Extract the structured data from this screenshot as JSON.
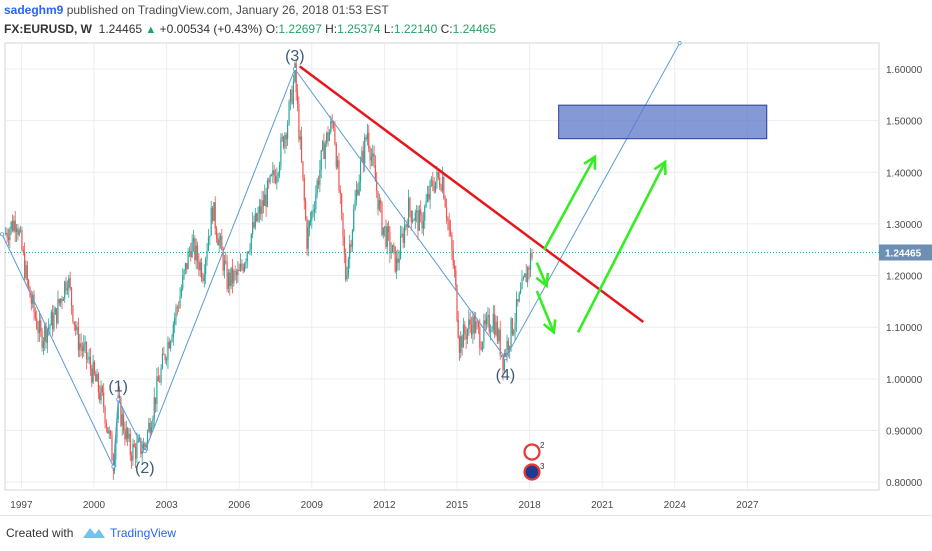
{
  "header": {
    "user": "sadeghm9",
    "published": " published on TradingView.com, January 26, 2018 01:53 EST",
    "symbol": "FX:EURUSD, W",
    "last": "1.24465",
    "change": "+0.00534 (+0.43%)",
    "o_label": "O:",
    "o_value": "1.22697",
    "h_label": "H:",
    "h_value": "1.25374",
    "l_label": "L:",
    "l_value": "1.22140",
    "c_label": "C:",
    "c_value": "1.24465"
  },
  "footer": {
    "created_with": "Created with",
    "brand": "TradingView"
  },
  "colors": {
    "up_candle": "#26a69a",
    "down_candle": "#ef5350",
    "wave_line": "#5b9bd5",
    "trend_line": "#e8161b",
    "arrows": "#33ee22",
    "zone_fill": "#5c77c9",
    "price_badge": "#6d8fb3",
    "grid": "#e9edf2"
  },
  "chart_data": {
    "type": "candlestick",
    "x_ticks": [
      1997,
      2000,
      2003,
      2006,
      2009,
      2012,
      2015,
      2018,
      2021,
      2024,
      2027
    ],
    "y_ticks": [
      "1.60000",
      "1.50000",
      "1.40000",
      "1.30000",
      "1.20000",
      "1.10000",
      "1.00000",
      "0.90000",
      "0.80000"
    ],
    "ylim": [
      0.78,
      1.67
    ],
    "current_price": 1.24465,
    "current_price_label": "1.24465",
    "price_path": [
      [
        1996.3,
        1.28
      ],
      [
        1996.8,
        1.31
      ],
      [
        1997.3,
        1.17
      ],
      [
        1997.8,
        1.08
      ],
      [
        1998.4,
        1.12
      ],
      [
        1998.9,
        1.2
      ],
      [
        1999.3,
        1.08
      ],
      [
        1999.8,
        1.03
      ],
      [
        2000.4,
        0.95
      ],
      [
        2000.8,
        0.84
      ],
      [
        2001.0,
        0.95
      ],
      [
        2001.5,
        0.86
      ],
      [
        2002.1,
        0.87
      ],
      [
        2002.6,
        0.98
      ],
      [
        2003.0,
        1.06
      ],
      [
        2003.5,
        1.15
      ],
      [
        2004.0,
        1.26
      ],
      [
        2004.5,
        1.21
      ],
      [
        2004.9,
        1.33
      ],
      [
        2005.5,
        1.19
      ],
      [
        2006.0,
        1.2
      ],
      [
        2006.5,
        1.28
      ],
      [
        2007.0,
        1.34
      ],
      [
        2007.5,
        1.4
      ],
      [
        2008.0,
        1.5
      ],
      [
        2008.3,
        1.59
      ],
      [
        2008.8,
        1.27
      ],
      [
        2009.0,
        1.32
      ],
      [
        2009.5,
        1.45
      ],
      [
        2009.9,
        1.5
      ],
      [
        2010.4,
        1.2
      ],
      [
        2010.9,
        1.38
      ],
      [
        2011.3,
        1.48
      ],
      [
        2011.9,
        1.3
      ],
      [
        2012.5,
        1.22
      ],
      [
        2013.0,
        1.33
      ],
      [
        2013.5,
        1.3
      ],
      [
        2014.0,
        1.38
      ],
      [
        2014.4,
        1.39
      ],
      [
        2014.9,
        1.2
      ],
      [
        2015.1,
        1.07
      ],
      [
        2015.6,
        1.11
      ],
      [
        2016.0,
        1.08
      ],
      [
        2016.5,
        1.12
      ],
      [
        2016.9,
        1.04
      ],
      [
        2017.4,
        1.12
      ],
      [
        2017.8,
        1.19
      ],
      [
        2018.1,
        1.245
      ]
    ],
    "wave_points": [
      [
        1996.2,
        1.28
      ],
      [
        2000.8,
        0.83
      ],
      [
        2001.0,
        0.96
      ],
      [
        2002.1,
        0.86
      ],
      [
        2008.3,
        1.6
      ],
      [
        2017.0,
        1.04
      ],
      [
        2024.2,
        1.65
      ]
    ],
    "wave_labels": [
      {
        "label": "(1)",
        "x": 2001.0,
        "y": 0.96
      },
      {
        "label": "(2)",
        "x": 2002.1,
        "y": 0.86
      },
      {
        "label": "(3)",
        "x": 2008.3,
        "y": 1.6
      },
      {
        "label": "(4)",
        "x": 2017.0,
        "y": 1.04
      }
    ],
    "trendline": [
      [
        2008.5,
        1.605
      ],
      [
        2022.7,
        1.11
      ]
    ],
    "target_zone": {
      "x": [
        2019.2,
        2027.8
      ],
      "y": [
        1.465,
        1.53
      ]
    },
    "arrows": [
      {
        "from": [
          2018.3,
          1.225
        ],
        "to": [
          2018.7,
          1.18
        ]
      },
      {
        "from": [
          2018.3,
          1.17
        ],
        "to": [
          2019.0,
          1.09
        ]
      },
      {
        "from": [
          2018.6,
          1.25
        ],
        "to": [
          2020.7,
          1.43
        ]
      },
      {
        "from": [
          2020.0,
          1.09
        ],
        "to": [
          2023.6,
          1.42
        ]
      }
    ]
  }
}
